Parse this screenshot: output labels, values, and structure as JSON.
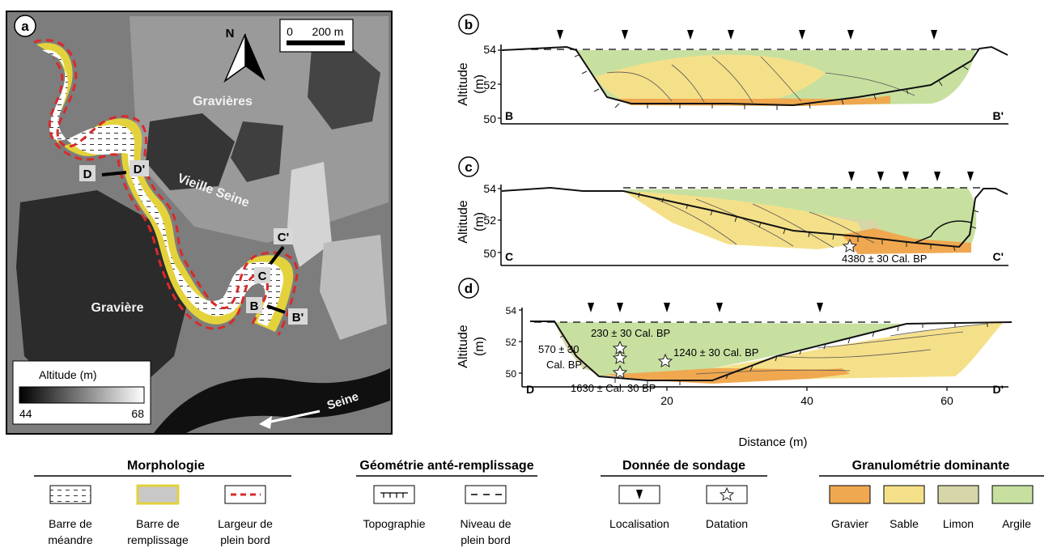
{
  "map": {
    "panel_letter": "a",
    "north_label": "N",
    "scale_min": "0",
    "scale_max": "200 m",
    "label_gravieres": "Gravières",
    "label_graviere": "Gravière",
    "label_vieille_seine": "Vieille Seine",
    "label_seine": "Seine",
    "legend_title": "Altitude (m)",
    "legend_min": "44",
    "legend_max": "68",
    "sections": [
      "B",
      "B'",
      "C",
      "C'",
      "D",
      "D'"
    ]
  },
  "panels": {
    "b": {
      "letter": "b",
      "left_label": "B",
      "right_label": "B'",
      "yticks": [
        "54",
        "52",
        "50"
      ]
    },
    "c": {
      "letter": "c",
      "left_label": "C",
      "right_label": "C'",
      "yticks": [
        "54",
        "52",
        "50"
      ],
      "date": "4380 ± 30 Cal. BP"
    },
    "d": {
      "letter": "d",
      "left_label": "D",
      "right_label": "D'",
      "yticks": [
        "54",
        "52",
        "50"
      ],
      "dates": [
        "230 ± 30 Cal. BP",
        "570 ± 30",
        "Cal. BP",
        "1240 ± 30 Cal. BP",
        "1630 ± Cal. 30 BP"
      ]
    }
  },
  "axes": {
    "ylabel_1": "Altitude",
    "ylabel_2": "(m)",
    "xlabel": "Distance (m)",
    "xticks": [
      "20",
      "40",
      "60"
    ]
  },
  "legend": {
    "morphologie": {
      "title": "Morphologie",
      "items": [
        {
          "line1": "Barre de",
          "line2": "méandre"
        },
        {
          "line1": "Barre de",
          "line2": "remplissage"
        },
        {
          "line1": "Largeur de",
          "line2": "plein bord"
        }
      ]
    },
    "geometrie": {
      "title": "Géométrie  anté-remplissage",
      "items": [
        {
          "line1": "Topographie",
          "line2": ""
        },
        {
          "line1": "Niveau de",
          "line2": "plein bord"
        }
      ]
    },
    "sondage": {
      "title": "Donnée de sondage",
      "items": [
        {
          "line1": "Localisation"
        },
        {
          "line1": "Datation"
        }
      ]
    },
    "granulometrie": {
      "title": "Granulométrie dominante",
      "items": [
        {
          "label": "Gravier",
          "color": "#f0a850"
        },
        {
          "label": "Sable",
          "color": "#f5e08a"
        },
        {
          "label": "Limon",
          "color": "#d6d6a8"
        },
        {
          "label": "Argile",
          "color": "#c7e0a0"
        }
      ]
    }
  },
  "colors": {
    "gravier": "#f0a850",
    "sable": "#f5e08a",
    "limon": "#d6d6a8",
    "argile": "#c7e0a0",
    "channel_red": "#d92a2a",
    "fill_bar": "#e3d23c"
  }
}
